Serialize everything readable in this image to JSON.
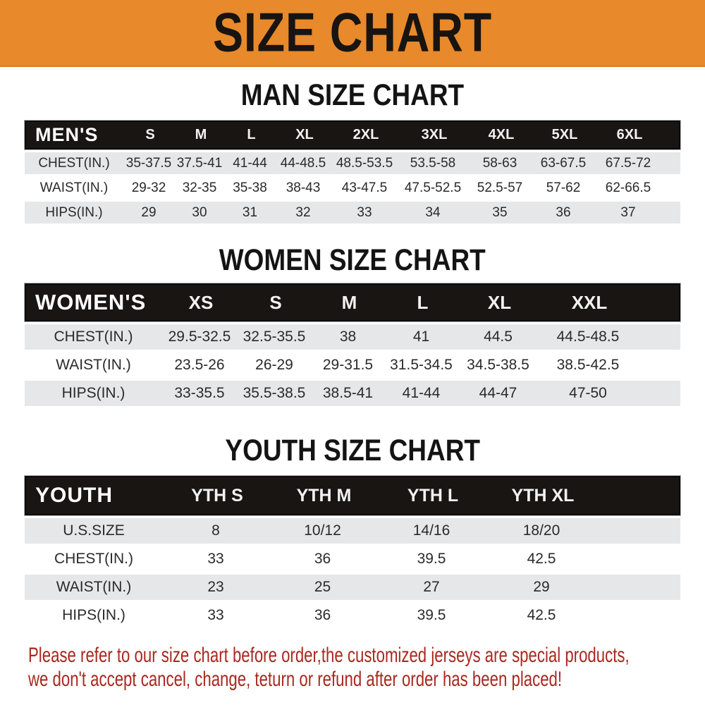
{
  "banner": {
    "title": "SIZE CHART",
    "bg_color": "#e8892b",
    "text_color": "#181411"
  },
  "sections": {
    "man": {
      "title": "MAN SIZE CHART",
      "table": {
        "corner": "MEN'S",
        "columns": [
          "S",
          "M",
          "L",
          "XL",
          "2XL",
          "3XL",
          "4XL",
          "5XL",
          "6XL"
        ],
        "rows": [
          {
            "label": "CHEST(IN.)",
            "values": [
              "35-37.5",
              "37.5-41",
              "41-44",
              "44-48.5",
              "48.5-53.5",
              "53.5-58",
              "58-63",
              "63-67.5",
              "67.5-72"
            ]
          },
          {
            "label": "WAIST(IN.)",
            "values": [
              "29-32",
              "32-35",
              "35-38",
              "38-43",
              "43-47.5",
              "47.5-52.5",
              "52.5-57",
              "57-62",
              "62-66.5"
            ]
          },
          {
            "label": "HIPS(IN.)",
            "values": [
              "29",
              "30",
              "31",
              "32",
              "33",
              "34",
              "35",
              "36",
              "37"
            ]
          }
        ]
      }
    },
    "women": {
      "title": "WOMEN SIZE CHART",
      "table": {
        "corner": "WOMEN'S",
        "columns": [
          "XS",
          "S",
          "M",
          "L",
          "XL",
          "XXL"
        ],
        "rows": [
          {
            "label": "CHEST(IN.)",
            "values": [
              "29.5-32.5",
              "32.5-35.5",
              "38",
              "41",
              "44.5",
              "44.5-48.5"
            ]
          },
          {
            "label": "WAIST(IN.)",
            "values": [
              "23.5-26",
              "26-29",
              "29-31.5",
              "31.5-34.5",
              "34.5-38.5",
              "38.5-42.5"
            ]
          },
          {
            "label": "HIPS(IN.)",
            "values": [
              "33-35.5",
              "35.5-38.5",
              "38.5-41",
              "41-44",
              "44-47",
              "47-50"
            ]
          }
        ]
      }
    },
    "youth": {
      "title": "YOUTH SIZE CHART",
      "table": {
        "corner": "YOUTH",
        "columns": [
          "YTH S",
          "YTH M",
          "YTH L",
          "YTH XL"
        ],
        "rows": [
          {
            "label": "U.S.SIZE",
            "values": [
              "8",
              "10/12",
              "14/16",
              "18/20"
            ]
          },
          {
            "label": "CHEST(IN.)",
            "values": [
              "33",
              "36",
              "39.5",
              "42.5"
            ]
          },
          {
            "label": "WAIST(IN.)",
            "values": [
              "23",
              "25",
              "27",
              "29"
            ]
          },
          {
            "label": "HIPS(IN.)",
            "values": [
              "33",
              "36",
              "39.5",
              "42.5"
            ]
          }
        ]
      }
    }
  },
  "footer": {
    "lines": [
      "Please refer to our size chart before order,the customized jerseys are special products,",
      "we don't accept cancel, change, teturn or refund after order has been placed!"
    ],
    "text_color": "#a8281f"
  },
  "colors": {
    "banner_orange": "#e8892b",
    "header_bar_black": "#191512",
    "row_gray": "#e6e7e9",
    "row_white": "#ffffff",
    "footer_red": "#a8281f"
  }
}
